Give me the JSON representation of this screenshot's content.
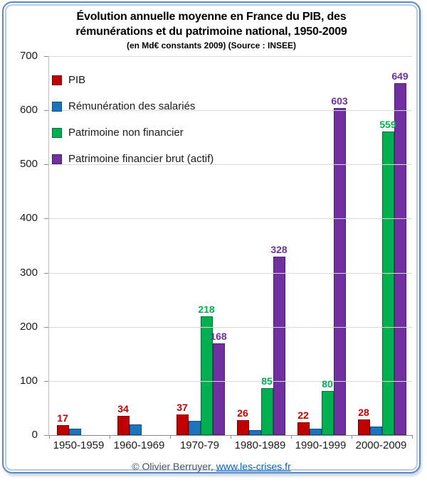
{
  "title": {
    "line1": "Évolution annuelle moyenne en France du PIB, des",
    "line2": "rémunérations et du patrimoine national, 1950-2009",
    "subtitle": "(en Md€ constants 2009) (Source : INSEE)"
  },
  "footer": {
    "credit": "© Olivier Berruyer, ",
    "link": "www.les-crises.fr"
  },
  "colors": {
    "frame_border": "#5b88c4",
    "gridline": "#d9d9d9",
    "axis": "#898989",
    "link": "#0563c1"
  },
  "chart_data": {
    "type": "bar",
    "title": "Évolution annuelle moyenne en France du PIB, des rémunérations et du patrimoine national, 1950-2009",
    "subtitle": "(en Md€ constants 2009) (Source : INSEE)",
    "categories": [
      "1950-1959",
      "1960-1969",
      "1970-79",
      "1980-1989",
      "1990-1999",
      "2000-2009"
    ],
    "series": [
      {
        "name": "PIB",
        "color": "#c00000",
        "border_color": "#7f0000",
        "values": [
          17,
          34,
          37,
          26,
          22,
          28
        ],
        "labels": [
          "17",
          "34",
          "37",
          "26",
          "22",
          "28"
        ]
      },
      {
        "name": "Rémunération des salariés",
        "color": "#1c75bc",
        "border_color": "#0d4e85",
        "values": [
          11,
          19,
          25,
          8,
          11,
          15
        ],
        "labels": [
          "",
          "",
          "",
          "",
          "",
          ""
        ]
      },
      {
        "name": "Patrimoine non financier",
        "color": "#00b050",
        "border_color": "#00703a",
        "values": [
          0,
          0,
          218,
          85,
          80,
          559
        ],
        "labels": [
          "",
          "",
          "218",
          "85",
          "80",
          "559"
        ]
      },
      {
        "name": "Patrimoine financier brut (actif)",
        "color": "#7030a0",
        "border_color": "#4b1e6e",
        "values": [
          0,
          0,
          168,
          328,
          603,
          649
        ],
        "labels": [
          "",
          "",
          "168",
          "328",
          "603",
          "649"
        ]
      }
    ],
    "ylim": [
      0,
      700
    ],
    "y_ticks": [
      700,
      600,
      500,
      400,
      300,
      200,
      100,
      0
    ],
    "grid": true,
    "legend_position": "top-left-inside"
  }
}
